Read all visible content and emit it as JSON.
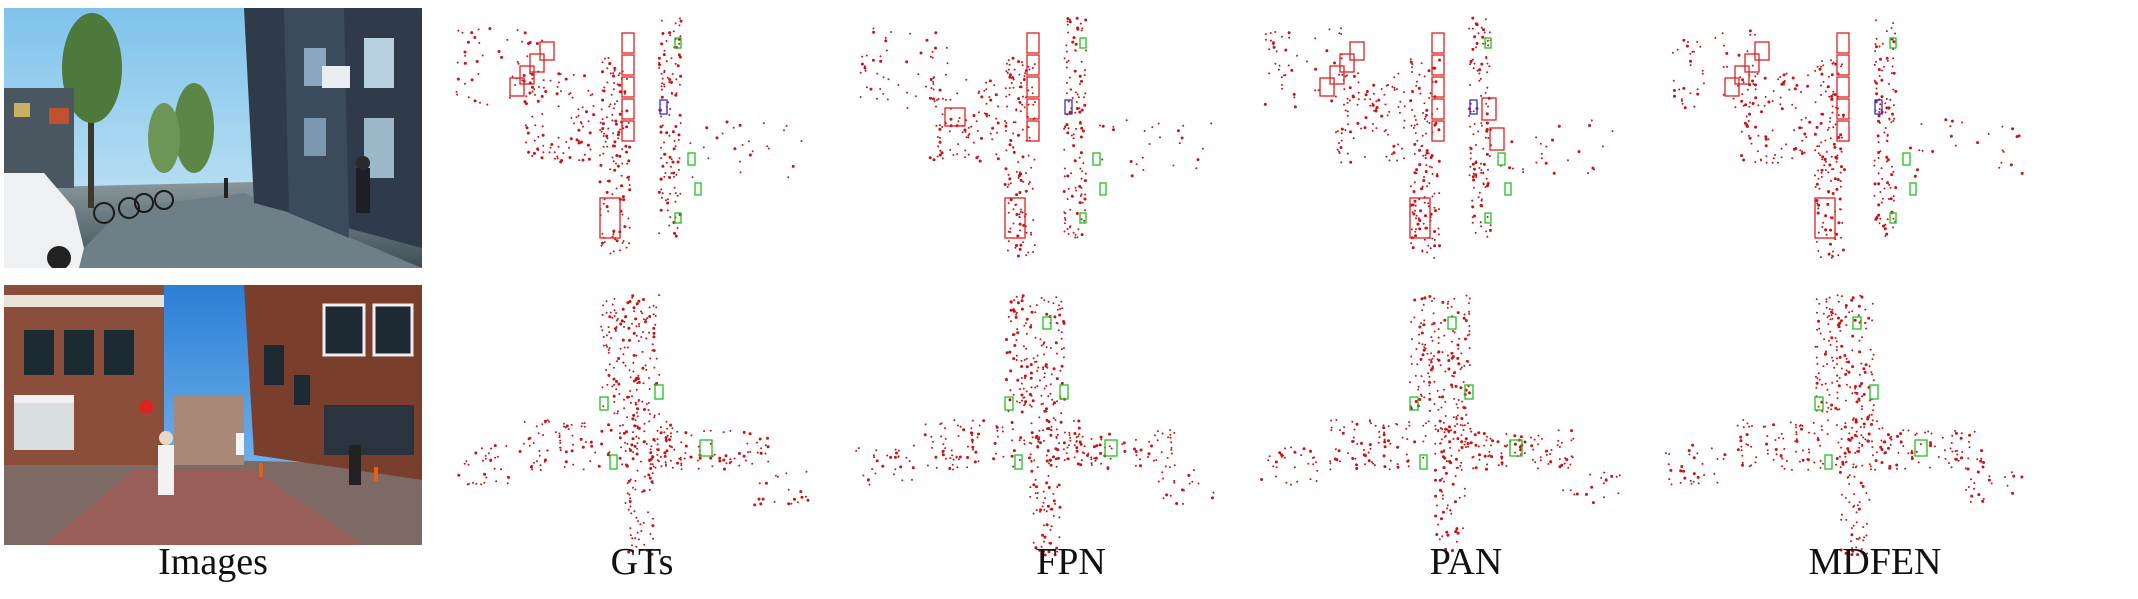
{
  "figure": {
    "columns": [
      {
        "label": "Images"
      },
      {
        "label": "GTs"
      },
      {
        "label": "FPN"
      },
      {
        "label": "PAN"
      },
      {
        "label": "MDFEN"
      }
    ],
    "colors": {
      "points": "#c81414",
      "box_car": "#e02020",
      "box_pedestrian": "#20c020",
      "box_cyclist": "#3030d0"
    },
    "rows": [
      {
        "scene": "street-with-bicycles-and-pedestrian"
      },
      {
        "scene": "intersection-with-brick-buildings"
      }
    ]
  }
}
